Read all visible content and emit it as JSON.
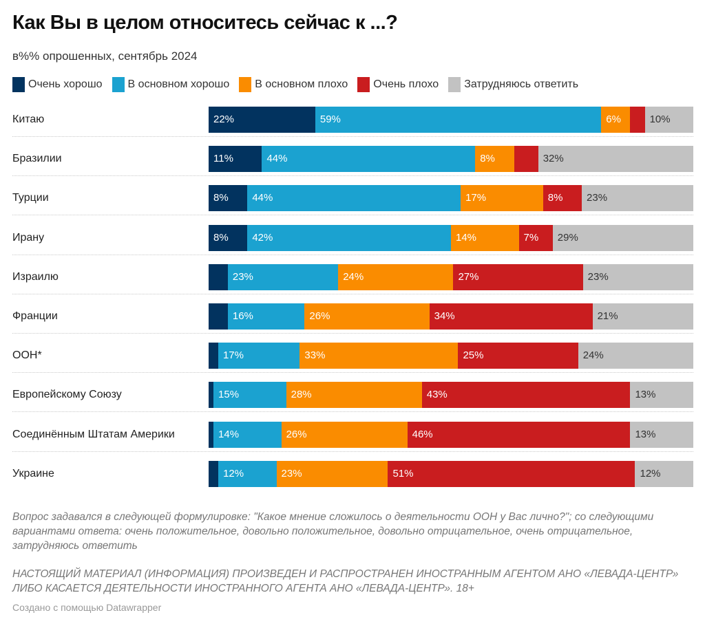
{
  "title": "Как Вы в целом относитесь сейчас к ...?",
  "subtitle": "в%% опрошенных, сентябрь 2024",
  "footnote": "Вопрос задавался в следующей формулировке: \"Какое мнение сложилось о деятельности ООН у Вас лично?\"; со следующими вариантами ответа: очень положительное, довольно положительное, довольно отрицательное, очень отрицательное, затрудняюсь ответить",
  "notice": "НАСТОЯЩИЙ МАТЕРИАЛ (ИНФОРМАЦИЯ) ПРОИЗВЕДЕН И РАСПРОСТРАНЕН ИНОСТРАННЫМ АГЕНТОМ АНО «ЛЕВАДА-ЦЕНТР» ЛИБО КАСАЕТСЯ ДЕЯТЕЛЬНОСТИ ИНОСТРАННОГО АГЕНТА АНО «ЛЕВАДА-ЦЕНТР». 18+",
  "credit": "Создано с помощью Datawrapper",
  "chart_data": {
    "type": "bar",
    "orientation": "horizontal",
    "stacked": true,
    "title": "Как Вы в целом относитесь сейчас к ...?",
    "subtitle": "в%% опрошенных, сентябрь 2024",
    "xlim": [
      0,
      100
    ],
    "grid": false,
    "legend_position": "top-left",
    "categories": [
      "Китаю",
      "Бразилии",
      "Турции",
      "Ирану",
      "Израилю",
      "Франции",
      "ООН*",
      "Европейскому Союзу",
      "Соединённым Штатам Америки",
      "Украине"
    ],
    "series": [
      {
        "name": "Очень хорошо",
        "color": "#02335f",
        "label_color": "#ffffff",
        "values": [
          22,
          11,
          8,
          8,
          4,
          4,
          2,
          1,
          1,
          2
        ],
        "show_labels": [
          true,
          true,
          true,
          true,
          false,
          false,
          false,
          false,
          false,
          false
        ]
      },
      {
        "name": "В основном хорошо",
        "color": "#1ba2d0",
        "label_color": "#ffffff",
        "values": [
          59,
          44,
          44,
          42,
          23,
          16,
          17,
          15,
          14,
          12
        ],
        "show_labels": [
          true,
          true,
          true,
          true,
          true,
          true,
          true,
          true,
          true,
          true
        ]
      },
      {
        "name": "В основном плохо",
        "color": "#fa8c00",
        "label_color": "#ffffff",
        "values": [
          6,
          8,
          17,
          14,
          24,
          26,
          33,
          28,
          26,
          23
        ],
        "show_labels": [
          true,
          true,
          true,
          true,
          true,
          true,
          true,
          true,
          true,
          true
        ]
      },
      {
        "name": "Очень плохо",
        "color": "#c91d1f",
        "label_color": "#ffffff",
        "values": [
          3,
          5,
          8,
          7,
          27,
          34,
          25,
          43,
          46,
          51
        ],
        "show_labels": [
          false,
          false,
          true,
          true,
          true,
          true,
          true,
          true,
          true,
          true
        ]
      },
      {
        "name": "Затрудняюсь ответить",
        "color": "#c2c2c2",
        "label_color": "#333333",
        "values": [
          10,
          32,
          23,
          29,
          23,
          21,
          24,
          13,
          13,
          12
        ],
        "show_labels": [
          true,
          true,
          true,
          true,
          true,
          true,
          true,
          true,
          true,
          true
        ]
      }
    ]
  }
}
